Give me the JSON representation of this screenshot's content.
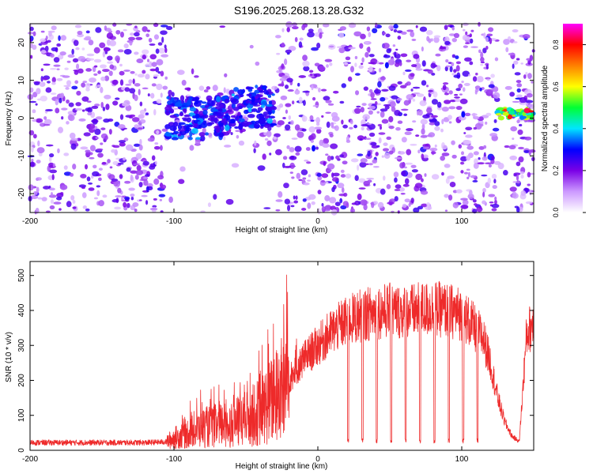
{
  "title": "S196.2025.268.13.28.G32",
  "chart_data": [
    {
      "type": "heatmap",
      "xlabel": "Height of straight line (km)",
      "ylabel": "Frequency (Hz)",
      "xlim": [
        -200,
        150
      ],
      "ylim": [
        -25,
        25
      ],
      "xticks": [
        -200,
        -100,
        0,
        100
      ],
      "xtick_labels": [
        "-200",
        "-100",
        "0",
        "100"
      ],
      "yticks": [
        -20,
        -10,
        0,
        10,
        20
      ],
      "ytick_labels": [
        "-20",
        "-10",
        "0",
        "10",
        "20"
      ],
      "colorbar": {
        "label": "Normalized spectral amplitude",
        "range": [
          0.0,
          0.9
        ],
        "ticks": [
          0.0,
          0.2,
          0.4,
          0.6,
          0.8
        ],
        "tick_labels": [
          "0.0",
          "0.2",
          "0.4",
          "0.6",
          "0.8"
        ],
        "colors": [
          "#ffffff",
          "#cc99ff",
          "#7a00e6",
          "#0000ff",
          "#00e6ff",
          "#00ff33",
          "#ffff00",
          "#ff8000",
          "#ff0000",
          "#ff00ff"
        ]
      },
      "features": [
        {
          "name": "wide noise band",
          "x_range": [
            -200,
            150
          ],
          "y_range": [
            -25,
            25
          ],
          "level": 0.15
        },
        {
          "name": "central cluster",
          "x_range": [
            -105,
            -30
          ],
          "y_range": [
            -6,
            7
          ],
          "level": 0.3
        },
        {
          "name": "strong right signal",
          "x_range": [
            125,
            150
          ],
          "y_range": [
            -1,
            3
          ],
          "level": 0.5
        }
      ]
    },
    {
      "type": "line",
      "xlabel": "Height of straight line (km)",
      "ylabel": "SNR (10 * v/v)",
      "xlim": [
        -200,
        150
      ],
      "ylim": [
        0,
        540
      ],
      "xticks": [
        -200,
        -100,
        0,
        100
      ],
      "xtick_labels": [
        "-200",
        "-100",
        "0",
        "100"
      ],
      "yticks": [
        0,
        100,
        200,
        300,
        400,
        500
      ],
      "ytick_labels": [
        "0",
        "100",
        "200",
        "300",
        "400",
        "500"
      ],
      "series": [
        {
          "name": "SNR",
          "color": "#ee2a2a",
          "x": [
            -200,
            -180,
            -160,
            -140,
            -120,
            -105,
            -100,
            -90,
            -80,
            -70,
            -60,
            -50,
            -40,
            -30,
            -20,
            -10,
            0,
            10,
            20,
            30,
            40,
            50,
            60,
            70,
            80,
            90,
            100,
            110,
            115,
            120,
            125,
            130,
            135,
            140,
            145,
            150
          ],
          "values": [
            22,
            22,
            22,
            22,
            22,
            24,
            35,
            50,
            65,
            70,
            75,
            90,
            110,
            150,
            200,
            260,
            300,
            340,
            370,
            385,
            395,
            400,
            395,
            400,
            405,
            400,
            390,
            345,
            320,
            250,
            150,
            80,
            40,
            25,
            330,
            370
          ],
          "dropouts_x": [
            21,
            31,
            41,
            51,
            61,
            71,
            81,
            91,
            101,
            111
          ]
        }
      ]
    }
  ]
}
